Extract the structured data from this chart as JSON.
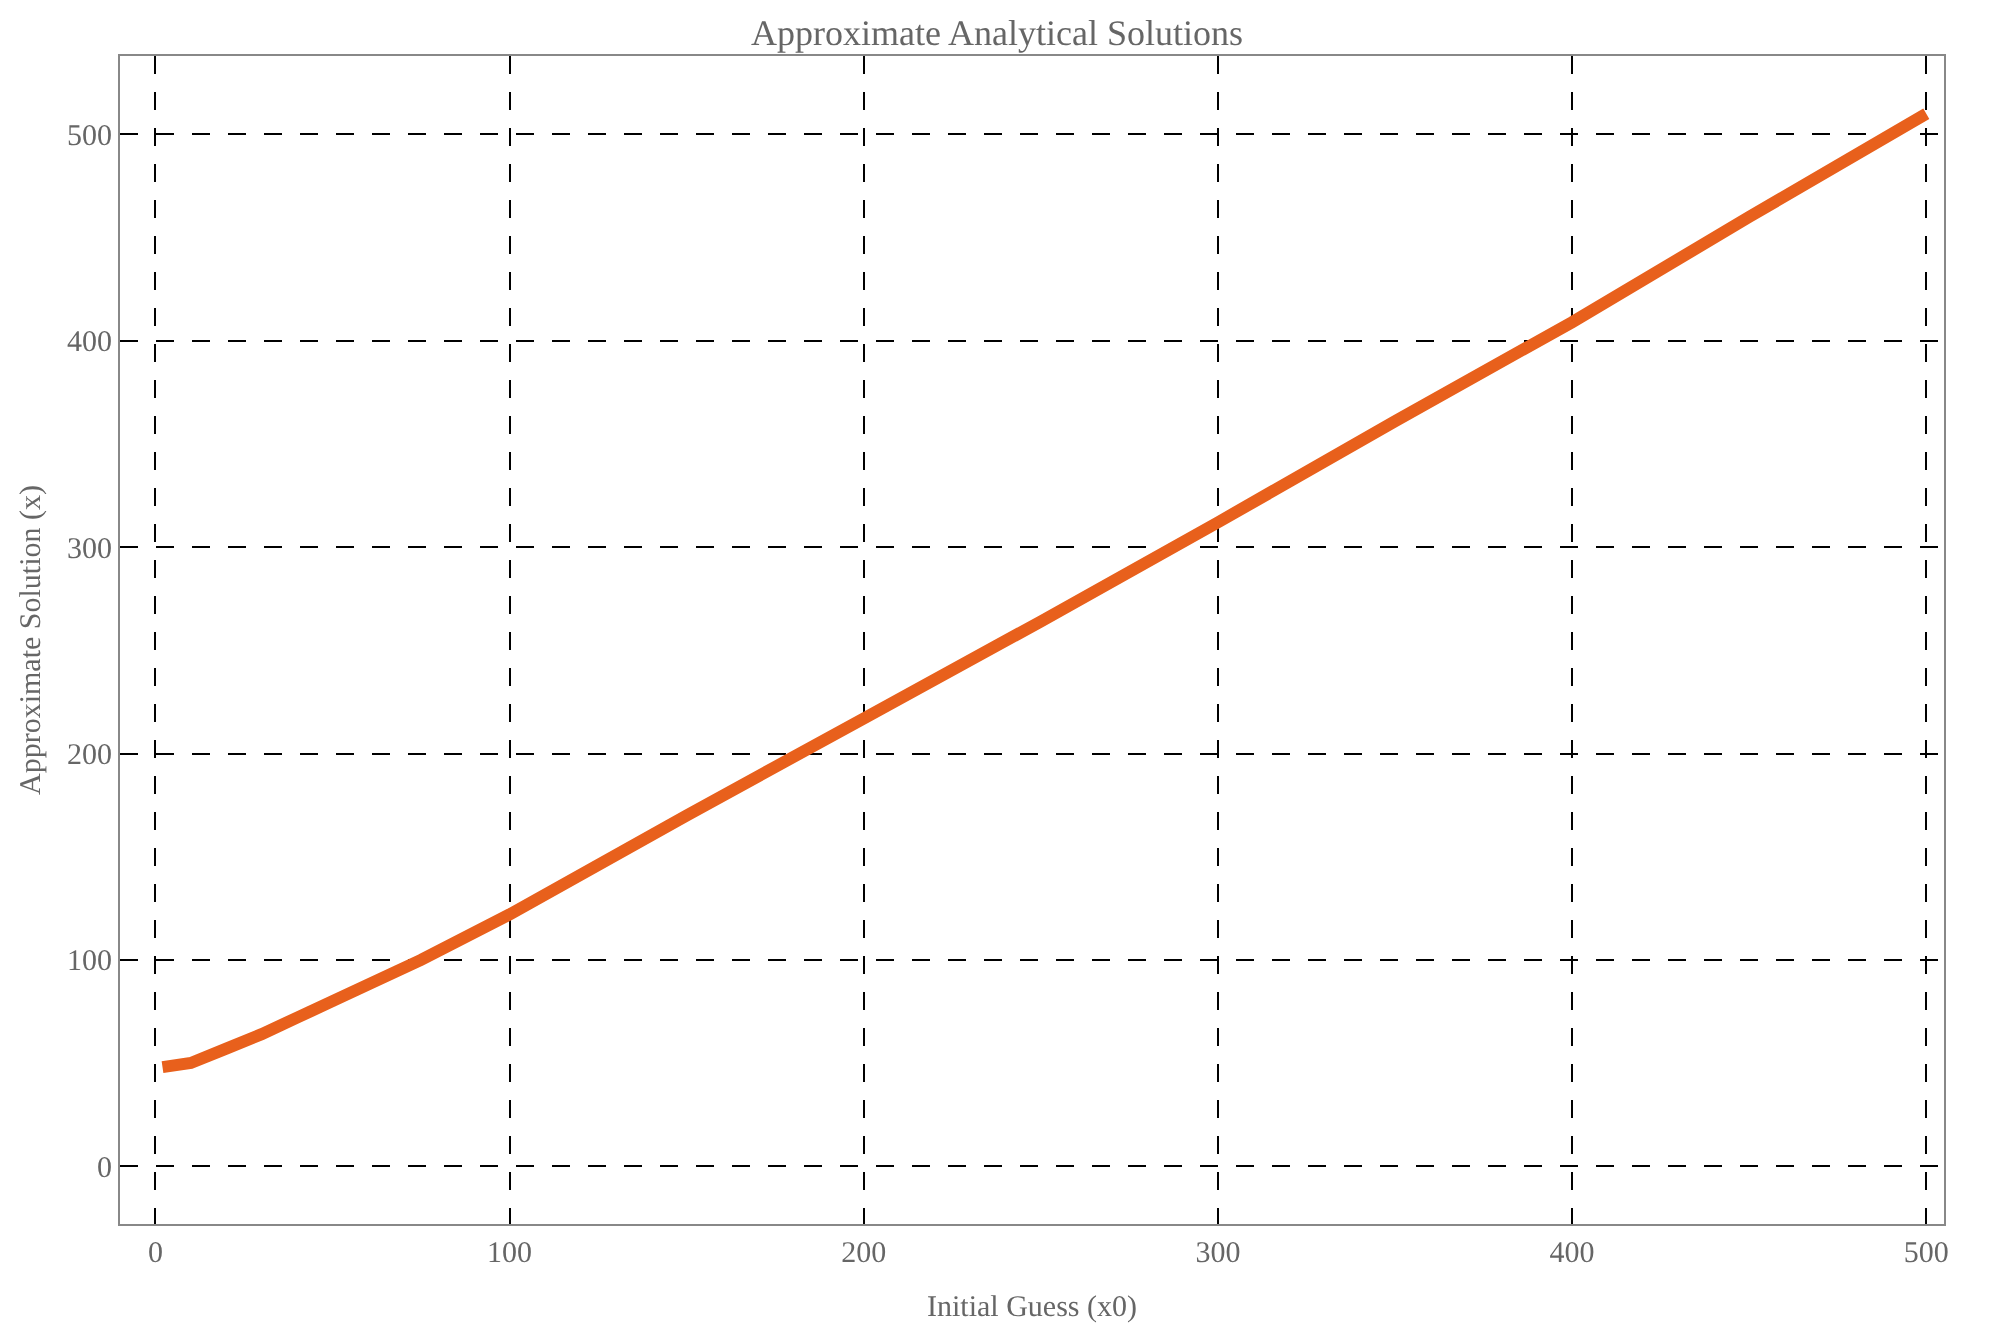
{
  "chart_data": {
    "type": "line",
    "title": "Approximate Analytical Solutions",
    "xlabel": "Initial Guess (x0)",
    "ylabel": "Approximate Solution (x)",
    "x": [
      2,
      10,
      20,
      30,
      40,
      50,
      60,
      75,
      100,
      150,
      200,
      250,
      300,
      350,
      400,
      450,
      500
    ],
    "series": [
      {
        "color": "#e8601c",
        "values": [
          48,
          50,
          57,
          64,
          72,
          80,
          88,
          100,
          122,
          170,
          217,
          264,
          312,
          361,
          409,
          460,
          510
        ]
      }
    ],
    "xlim": [
      -10,
      505
    ],
    "ylim": [
      -28,
      538
    ],
    "xticks": [
      0,
      100,
      200,
      300,
      400,
      500
    ],
    "yticks": [
      0,
      100,
      200,
      300,
      400,
      500
    ],
    "grid": true,
    "line_style": "solid",
    "marker": "none"
  }
}
